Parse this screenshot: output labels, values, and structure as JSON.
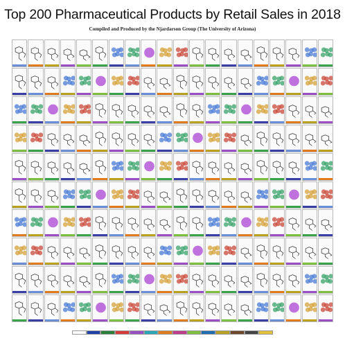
{
  "poster": {
    "title": "Top 200 Pharmaceutical Products by Retail Sales in 2018",
    "subtitle": "Compiled and Produced by the Njardarson Group (The University of Arizona)"
  },
  "bar_colors": [
    "#6a8fd6",
    "#39a24a",
    "#d83a3a",
    "#9b4fc4",
    "#2aa7b8",
    "#e07b1f",
    "#3a3fa8",
    "#c23c8c",
    "#7fbf3f",
    "#1f6fb2",
    "#b8a21f",
    "#444444"
  ],
  "molecule_styles": [
    {
      "kind": "skeletal",
      "color": "#333333"
    },
    {
      "kind": "protein",
      "color": "#3aa36b"
    },
    {
      "kind": "skeletal",
      "color": "#333333"
    },
    {
      "kind": "protein",
      "color": "#d6a23a"
    },
    {
      "kind": "skeletal",
      "color": "#333333"
    },
    {
      "kind": "skeletal",
      "color": "#333333"
    },
    {
      "kind": "protein",
      "color": "#4a7bd6"
    },
    {
      "kind": "skeletal",
      "color": "#333333"
    },
    {
      "kind": "sphere",
      "color": "#b04fd6"
    },
    {
      "kind": "skeletal",
      "color": "#333333"
    },
    {
      "kind": "protein",
      "color": "#c94a3a"
    },
    {
      "kind": "skeletal",
      "color": "#333333"
    }
  ],
  "legend_colors": [
    "#ffffff",
    "#1f3fa8",
    "#2a7f3a",
    "#d83a3a",
    "#9b4fc4",
    "#2aa7b8",
    "#e07b1f",
    "#c23c8c",
    "#7fbf3f",
    "#1f6fb2",
    "#b8a21f",
    "#6a4a2a",
    "#444444",
    "#e0c03a"
  ]
}
